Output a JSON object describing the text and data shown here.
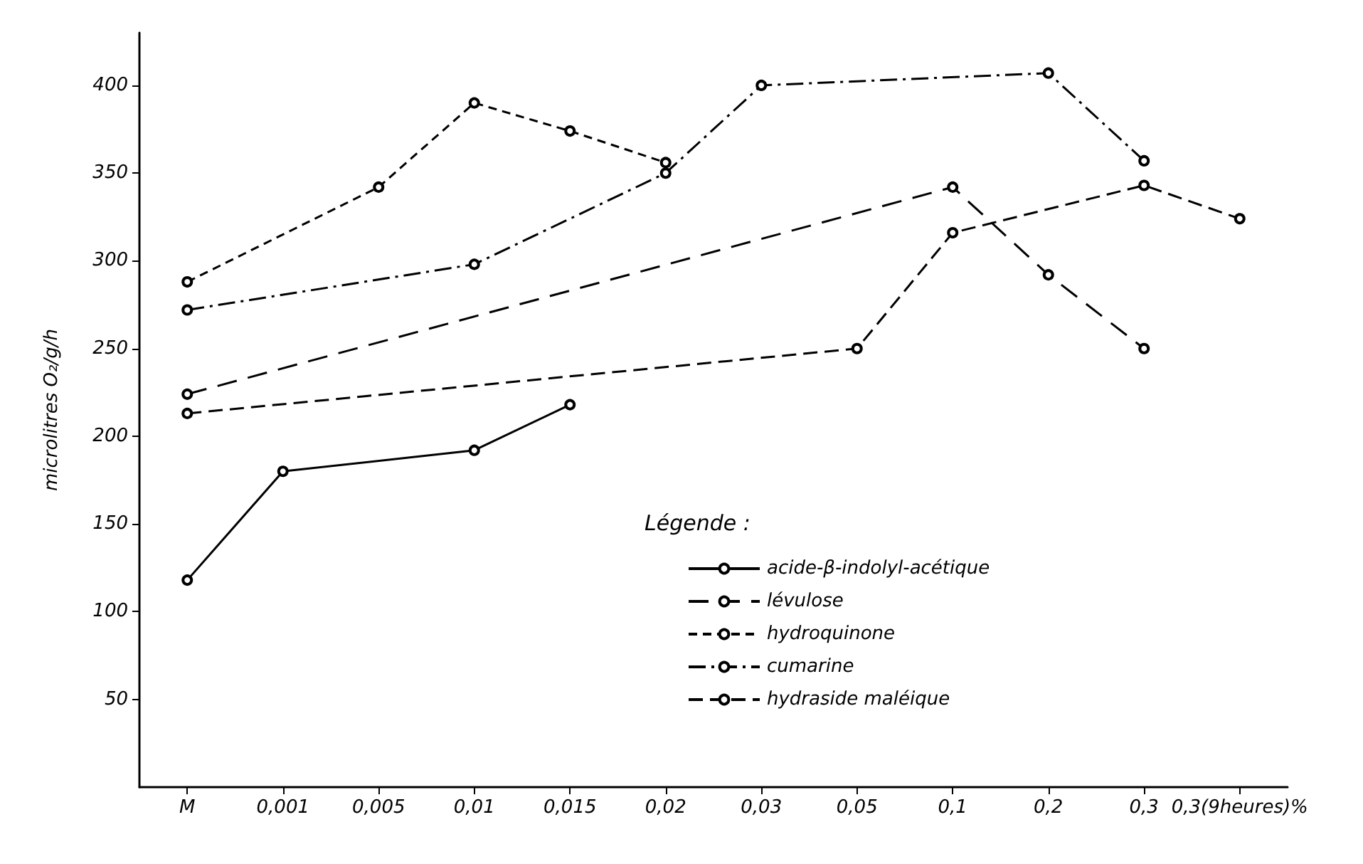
{
  "chart_data": {
    "type": "line",
    "ylabel": "microlitres O₂/g/h",
    "categories": [
      "M",
      "0,001",
      "0,005",
      "0,01",
      "0,015",
      "0,02",
      "0,03",
      "0,05",
      "0,1",
      "0,2",
      "0,3",
      "0,3(9heures)%"
    ],
    "ylim": [
      0,
      430
    ],
    "yticks": [
      50,
      100,
      150,
      200,
      250,
      300,
      350,
      400
    ],
    "legend_title": "Légende :",
    "legend": "bottom right",
    "grid": false,
    "marker": "circle",
    "series": [
      {
        "name": "acide-β-indolyl-acétique",
        "color": "#000000",
        "line_style": "solid",
        "values": [
          118,
          180,
          null,
          192,
          218,
          null,
          null,
          null,
          null,
          null,
          null,
          null
        ]
      },
      {
        "name": "lévulose",
        "color": "#000000",
        "line_style": "dashed",
        "values": [
          224,
          null,
          null,
          null,
          null,
          null,
          null,
          null,
          342,
          292,
          250,
          null
        ]
      },
      {
        "name": "hydroquinone",
        "color": "#000000",
        "line_style": "dashed",
        "values": [
          288,
          null,
          342,
          390,
          374,
          356,
          null,
          null,
          null,
          null,
          null,
          null
        ]
      },
      {
        "name": "cumarine",
        "color": "#000000",
        "line_style": "dashed",
        "values": [
          272,
          null,
          null,
          298,
          null,
          350,
          400,
          null,
          null,
          407,
          357,
          null
        ]
      },
      {
        "name": "hydraside maléique",
        "color": "#000000",
        "line_style": "dashed",
        "values": [
          213,
          null,
          null,
          null,
          null,
          null,
          null,
          250,
          316,
          null,
          343,
          324
        ]
      }
    ]
  }
}
